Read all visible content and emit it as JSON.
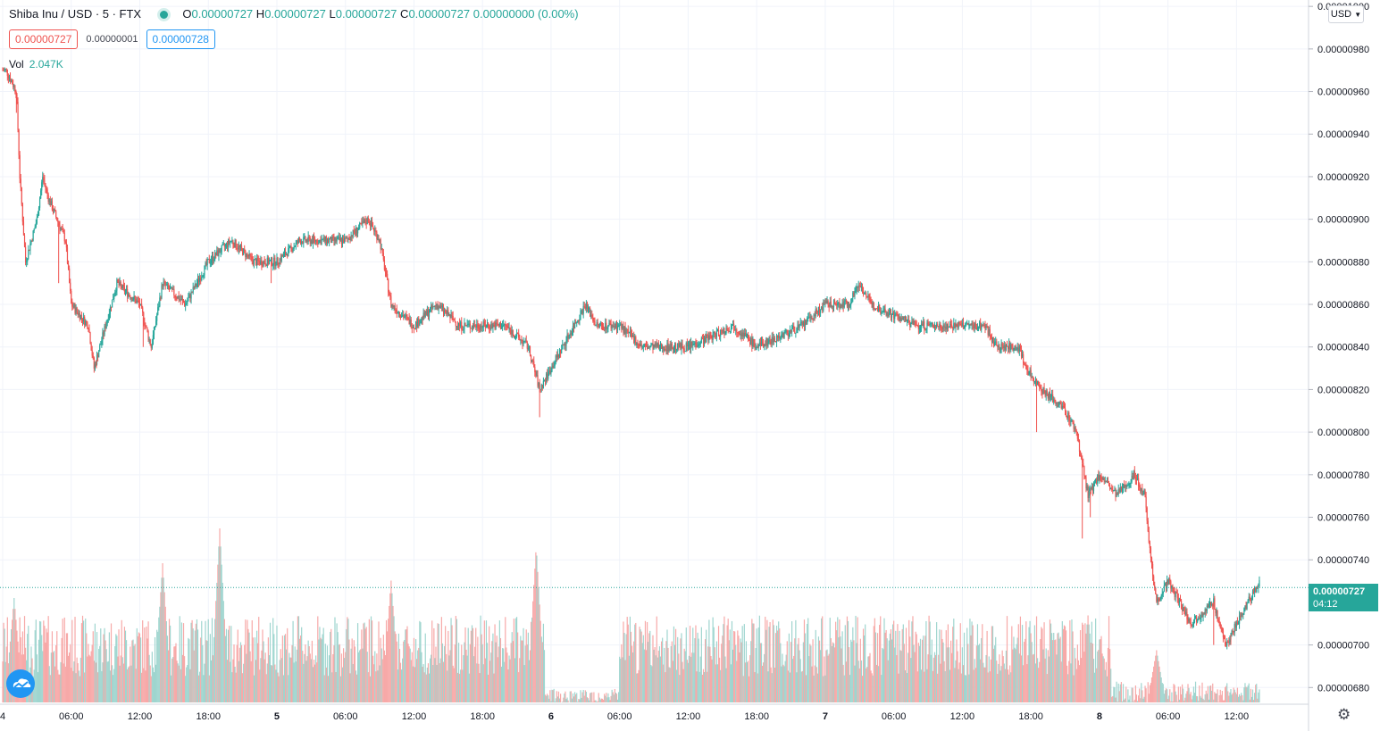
{
  "legend": {
    "symbol": "Shiba Inu / USD · 5 · FTX",
    "o_label": "O",
    "o_value": "0.00000727",
    "h_label": "H",
    "h_value": "0.00000727",
    "l_label": "L",
    "l_value": "0.00000727",
    "c_label": "C",
    "c_value": "0.00000727",
    "change": "0.00000000 (0.00%)"
  },
  "quote": {
    "bid": "0.00000727",
    "spread": "0.00000001",
    "ask": "0.00000728"
  },
  "volume": {
    "label": "Vol",
    "value": "2.047K"
  },
  "currency_button": "USD",
  "last_price": {
    "price": "0.00000727",
    "countdown": "04:12"
  },
  "colors": {
    "up": "#26a69a",
    "down": "#ef5350",
    "up_vol": "#9fd5cf",
    "down_vol": "#f7a9a8",
    "grid": "#f0f3fa"
  },
  "icons": {
    "logo": "tradingview-cloud-icon",
    "settings": "gear-icon"
  },
  "chart_data": {
    "type": "candlestick",
    "interval": "5",
    "y_axis": {
      "range": [
        6.73e-06,
        1.003e-05
      ],
      "ticks": [
        "0.00001000",
        "0.00000980",
        "0.00000960",
        "0.00000940",
        "0.00000920",
        "0.00000900",
        "0.00000880",
        "0.00000860",
        "0.00000840",
        "0.00000820",
        "0.00000800",
        "0.00000780",
        "0.00000760",
        "0.00000740",
        "0.00000700",
        "0.00000680"
      ],
      "tick_values": [
        1e-05,
        9.8e-06,
        9.6e-06,
        9.4e-06,
        9.2e-06,
        9e-06,
        8.8e-06,
        8.6e-06,
        8.4e-06,
        8.2e-06,
        8e-06,
        7.8e-06,
        7.6e-06,
        7.4e-06,
        7e-06,
        6.8e-06
      ]
    },
    "x_axis": {
      "ticks": [
        "4",
        "06:00",
        "12:00",
        "18:00",
        "5",
        "06:00",
        "12:00",
        "18:00",
        "6",
        "06:00",
        "12:00",
        "18:00",
        "7",
        "06:00",
        "12:00",
        "18:00",
        "8",
        "06:00",
        "12:00"
      ],
      "tick_hours": [
        0,
        6,
        12,
        18,
        24,
        30,
        36,
        42,
        48,
        54,
        60,
        66,
        72,
        78,
        84,
        90,
        96,
        102,
        108
      ],
      "bold": [
        "5",
        "6",
        "7",
        "8"
      ]
    },
    "last_price": 7.27e-06,
    "price_path": [
      [
        0,
        9.7e-06
      ],
      [
        0.3,
        9.7e-06
      ],
      [
        1.2,
        9.6e-06
      ],
      [
        1.5,
        9.2e-06
      ],
      [
        2,
        8.8e-06
      ],
      [
        3,
        9e-06
      ],
      [
        3.5,
        9.2e-06
      ],
      [
        4,
        9.1e-06
      ],
      [
        5.5,
        8.9e-06
      ],
      [
        6,
        8.6e-06
      ],
      [
        7.5,
        8.5e-06
      ],
      [
        8,
        8.3e-06
      ],
      [
        8.5,
        8.4e-06
      ],
      [
        10,
        8.7e-06
      ],
      [
        12,
        8.6e-06
      ],
      [
        13,
        8.4e-06
      ],
      [
        14,
        8.7e-06
      ],
      [
        16,
        8.6e-06
      ],
      [
        18,
        8.8e-06
      ],
      [
        20,
        8.9e-06
      ],
      [
        22,
        8.8e-06
      ],
      [
        24,
        8.8e-06
      ],
      [
        26,
        8.9e-06
      ],
      [
        28,
        8.9e-06
      ],
      [
        30,
        8.9e-06
      ],
      [
        32,
        9e-06
      ],
      [
        33,
        8.9e-06
      ],
      [
        34,
        8.6e-06
      ],
      [
        36,
        8.5e-06
      ],
      [
        38,
        8.6e-06
      ],
      [
        40,
        8.5e-06
      ],
      [
        44,
        8.5e-06
      ],
      [
        46,
        8.4e-06
      ],
      [
        47,
        8.2e-06
      ],
      [
        48,
        8.3e-06
      ],
      [
        49,
        8.4e-06
      ],
      [
        50,
        8.5e-06
      ],
      [
        51,
        8.6e-06
      ],
      [
        52,
        8.5e-06
      ],
      [
        54,
        8.5e-06
      ],
      [
        56,
        8.4e-06
      ],
      [
        60,
        8.4e-06
      ],
      [
        64,
        8.5e-06
      ],
      [
        66,
        8.4e-06
      ],
      [
        70,
        8.5e-06
      ],
      [
        72,
        8.6e-06
      ],
      [
        74,
        8.6e-06
      ],
      [
        75,
        8.7e-06
      ],
      [
        76,
        8.6e-06
      ],
      [
        80,
        8.5e-06
      ],
      [
        84,
        8.5e-06
      ],
      [
        86,
        8.5e-06
      ],
      [
        87,
        8.4e-06
      ],
      [
        89,
        8.4e-06
      ],
      [
        89.5,
        8.3e-06
      ],
      [
        91,
        8.2e-06
      ],
      [
        93,
        8.1e-06
      ],
      [
        94,
        8e-06
      ],
      [
        95,
        7.7e-06
      ],
      [
        96,
        7.8e-06
      ],
      [
        97.5,
        7.7e-06
      ],
      [
        99,
        7.8e-06
      ],
      [
        100,
        7.7e-06
      ],
      [
        100.5,
        7.4e-06
      ],
      [
        101,
        7.2e-06
      ],
      [
        102,
        7.3e-06
      ],
      [
        104,
        7.1e-06
      ],
      [
        106,
        7.2e-06
      ],
      [
        107,
        7e-06
      ],
      [
        108,
        7.1e-06
      ],
      [
        109,
        7.2e-06
      ],
      [
        110,
        7.3e-06
      ]
    ],
    "wicks": [
      {
        "h": 1.2,
        "low": 9.5e-06
      },
      {
        "h": 4.9,
        "low": 8.7e-06
      },
      {
        "h": 8.2,
        "low": 8.3e-06
      },
      {
        "h": 12.3,
        "low": 8.4e-06
      },
      {
        "h": 23.5,
        "low": 8.7e-06
      },
      {
        "h": 47,
        "low": 8.07e-06
      },
      {
        "h": 90.5,
        "low": 8e-06
      },
      {
        "h": 94.5,
        "low": 7.5e-06
      },
      {
        "h": 95.2,
        "low": 7.6e-06
      },
      {
        "h": 106,
        "low": 7e-06
      },
      {
        "h": 107.5,
        "low": 7e-06
      }
    ],
    "volume_spikes": [
      {
        "h": 1,
        "v": 0.6
      },
      {
        "h": 14,
        "v": 0.8
      },
      {
        "h": 19,
        "v": 1.0
      },
      {
        "h": 34,
        "v": 0.7
      },
      {
        "h": 46.7,
        "v": 0.9
      },
      {
        "h": 92,
        "v": 0.4
      },
      {
        "h": 95,
        "v": 0.5
      },
      {
        "h": 101,
        "v": 0.3
      }
    ]
  }
}
